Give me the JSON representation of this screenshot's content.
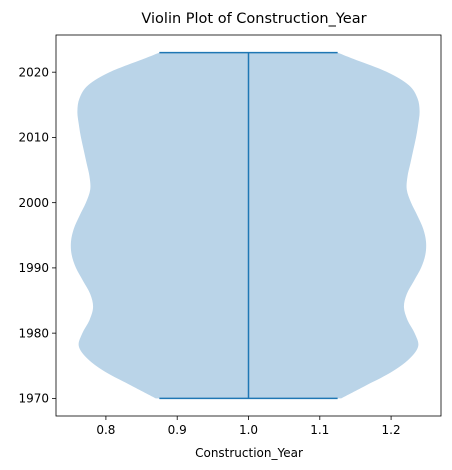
{
  "chart_data": {
    "type": "violin",
    "title": "Violin Plot of Construction_Year",
    "xlabel": "Construction_Year",
    "ylabel": "",
    "xlim": [
      0.73,
      1.27
    ],
    "ylim": [
      1967.3,
      2025.7
    ],
    "xticks": [
      0.8,
      0.9,
      1.0,
      1.1,
      1.2
    ],
    "xtick_labels": [
      "0.8",
      "0.9",
      "1.0",
      "1.1",
      "1.2"
    ],
    "yticks": [
      1970,
      1980,
      1990,
      2000,
      2010,
      2020
    ],
    "ytick_labels": [
      "1970",
      "1980",
      "1990",
      "2000",
      "2010",
      "2020"
    ],
    "position": 1.0,
    "min": 1970,
    "max": 2023,
    "cap_halfwidth": 0.125,
    "fill_color": "#bad4e8",
    "line_color": "#1f77b4",
    "density_profile": {
      "y": [
        1970,
        1972,
        1974,
        1976,
        1978,
        1980,
        1982,
        1984,
        1986,
        1988,
        1990,
        1992,
        1994,
        1996,
        1998,
        2000,
        2002,
        2004,
        2006,
        2008,
        2010,
        2012,
        2014,
        2016,
        2018,
        2020,
        2022,
        2023
      ],
      "half_width": [
        0.13,
        0.165,
        0.2,
        0.225,
        0.238,
        0.233,
        0.223,
        0.218,
        0.222,
        0.232,
        0.242,
        0.248,
        0.249,
        0.245,
        0.237,
        0.228,
        0.222,
        0.223,
        0.227,
        0.231,
        0.235,
        0.238,
        0.24,
        0.237,
        0.225,
        0.195,
        0.148,
        0.125
      ]
    }
  }
}
